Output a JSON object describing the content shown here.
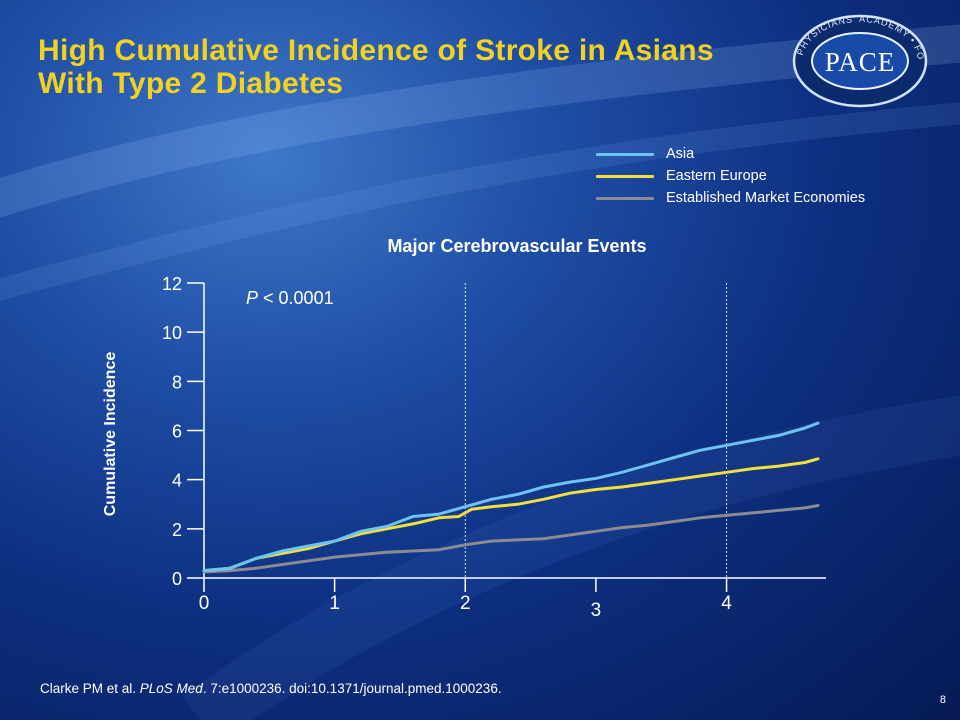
{
  "slide": {
    "title": "High Cumulative Incidence of Stroke in Asians With Type 2 Diabetes",
    "page_number": "8",
    "footnote": {
      "authors": "Clarke PM et al. ",
      "journal": "PLoS Med",
      "rest": ". 7:e1000236. doi:10.1371/journal.pmed.1000236."
    },
    "logo": {
      "center_text": "PACE",
      "ring_text": "PHYSICIANS' ACADEMY • FOR CONTINUING EDUCATION",
      "icon": "pace-seal-logo"
    }
  },
  "chart_data": {
    "type": "line",
    "title": "Major Cerebrovascular Events",
    "ylabel": "Cumulative Incidence",
    "xlabel": "",
    "annotation": {
      "italic": "P",
      "rest": " < 0.0001"
    },
    "xlim": [
      0,
      4.7
    ],
    "ylim": [
      0,
      12
    ],
    "x_ticks": [
      0,
      1,
      2,
      3,
      4
    ],
    "x_tick_labels": [
      "0",
      "1",
      "2",
      "3",
      "4"
    ],
    "y_ticks": [
      0,
      2,
      4,
      6,
      8,
      10,
      12
    ],
    "y_tick_labels": [
      "0",
      "2",
      "4",
      "6",
      "8",
      "10",
      "12"
    ],
    "reference_lines_x": [
      2,
      4
    ],
    "legend_position": "top-right",
    "series": [
      {
        "name": "Asia",
        "color": "#6ec3f2",
        "x": [
          0,
          0.2,
          0.4,
          0.6,
          0.8,
          1.0,
          1.2,
          1.4,
          1.6,
          1.8,
          2.0,
          2.2,
          2.4,
          2.6,
          2.8,
          3.0,
          3.2,
          3.4,
          3.6,
          3.8,
          4.0,
          4.2,
          4.4,
          4.6,
          4.7
        ],
        "y": [
          0.3,
          0.4,
          0.8,
          1.1,
          1.3,
          1.5,
          1.9,
          2.1,
          2.5,
          2.6,
          2.9,
          3.2,
          3.4,
          3.7,
          3.9,
          4.05,
          4.3,
          4.6,
          4.9,
          5.2,
          5.4,
          5.6,
          5.8,
          6.1,
          6.3
        ]
      },
      {
        "name": "Eastern Europe",
        "color": "#f0df3c",
        "x": [
          0,
          0.2,
          0.4,
          0.6,
          0.8,
          1.0,
          1.2,
          1.4,
          1.6,
          1.8,
          1.95,
          2.05,
          2.2,
          2.4,
          2.6,
          2.8,
          3.0,
          3.2,
          3.4,
          3.6,
          3.8,
          4.0,
          4.2,
          4.4,
          4.6,
          4.7
        ],
        "y": [
          0.3,
          0.4,
          0.8,
          1.0,
          1.2,
          1.5,
          1.8,
          2.0,
          2.2,
          2.45,
          2.5,
          2.8,
          2.9,
          3.0,
          3.2,
          3.45,
          3.6,
          3.7,
          3.85,
          4.0,
          4.15,
          4.3,
          4.45,
          4.55,
          4.7,
          4.85
        ]
      },
      {
        "name": "Established Market Economies",
        "color": "#8a8c8f",
        "x": [
          0,
          0.2,
          0.4,
          0.6,
          0.8,
          1.0,
          1.2,
          1.4,
          1.6,
          1.8,
          2.0,
          2.2,
          2.4,
          2.6,
          2.8,
          3.0,
          3.2,
          3.4,
          3.6,
          3.8,
          4.0,
          4.2,
          4.4,
          4.6,
          4.7
        ],
        "y": [
          0.25,
          0.3,
          0.4,
          0.55,
          0.7,
          0.85,
          0.95,
          1.05,
          1.1,
          1.15,
          1.35,
          1.5,
          1.55,
          1.6,
          1.75,
          1.9,
          2.05,
          2.15,
          2.3,
          2.45,
          2.55,
          2.65,
          2.75,
          2.85,
          2.95
        ]
      }
    ]
  }
}
